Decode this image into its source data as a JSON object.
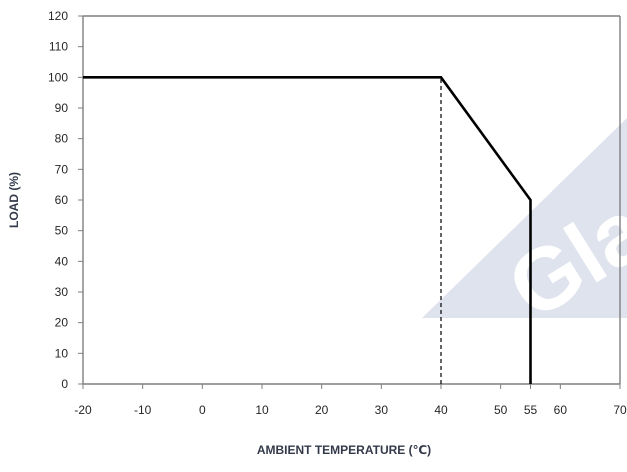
{
  "chart_data": {
    "type": "line",
    "title": "",
    "xlabel": "AMBIENT TEMPERATURE (℃)",
    "ylabel": "LOAD (%)",
    "xlim": [
      -20,
      70
    ],
    "ylim": [
      0,
      120
    ],
    "x_ticks": [
      -20,
      -10,
      0,
      10,
      20,
      30,
      40,
      50,
      55,
      60,
      70
    ],
    "y_ticks": [
      0,
      10,
      20,
      30,
      40,
      50,
      60,
      70,
      80,
      90,
      100,
      110,
      120
    ],
    "grid": false,
    "legend": "none",
    "series": [
      {
        "x": [
          -20,
          40,
          55,
          55
        ],
        "y": [
          100,
          100,
          60,
          0
        ],
        "style": "solid",
        "color": "#000000"
      }
    ],
    "reference_lines": [
      {
        "x": [
          40,
          40
        ],
        "y": [
          0,
          100
        ],
        "style": "dashed",
        "color": "#000000"
      }
    ],
    "watermark": {
      "text": "Gla",
      "color": "#dfe3ee"
    },
    "colors": {
      "axis": "#7f7f7f",
      "tick_text": "#262626",
      "axis_title": "#333a4a"
    }
  }
}
